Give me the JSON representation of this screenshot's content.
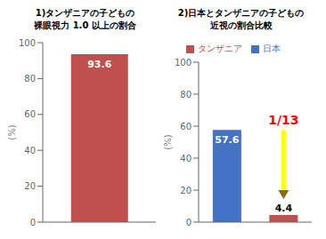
{
  "chart_data": [
    {
      "type": "bar",
      "title": "1)タンザニアの子どもの\n裸眼視力 1.0 以上の割合",
      "ylabel": "(%)",
      "categories": [
        null
      ],
      "values": [
        93.6
      ],
      "color": "#c0504d",
      "ylim": [
        0,
        100
      ],
      "yticks": [
        0,
        20,
        40,
        60,
        80,
        100
      ],
      "grid": false,
      "data_labels": true,
      "tick_labels": "y"
    },
    {
      "type": "bar",
      "title": "2)日本とタンザニアの子どもの\n近視の割合比較",
      "ylabel": "(%)",
      "categories": [
        null,
        null
      ],
      "series": [
        {
          "name": "日本",
          "color": "#4472c4",
          "values": [
            57.6,
            null
          ]
        },
        {
          "name": "タンザニア",
          "color": "#c0504d",
          "values": [
            null,
            4.4
          ]
        }
      ],
      "stacked": true,
      "ylim": [
        0,
        100
      ],
      "yticks": [
        0,
        20,
        40,
        60,
        80,
        100
      ],
      "grid": false,
      "data_labels": true,
      "tick_labels": "y",
      "legend": "top",
      "annotations": [
        {
          "text": "1/13",
          "color": "#ff0000",
          "arrow_color": "#ffff00",
          "arrow_head_color": "#8B6914"
        }
      ]
    }
  ]
}
